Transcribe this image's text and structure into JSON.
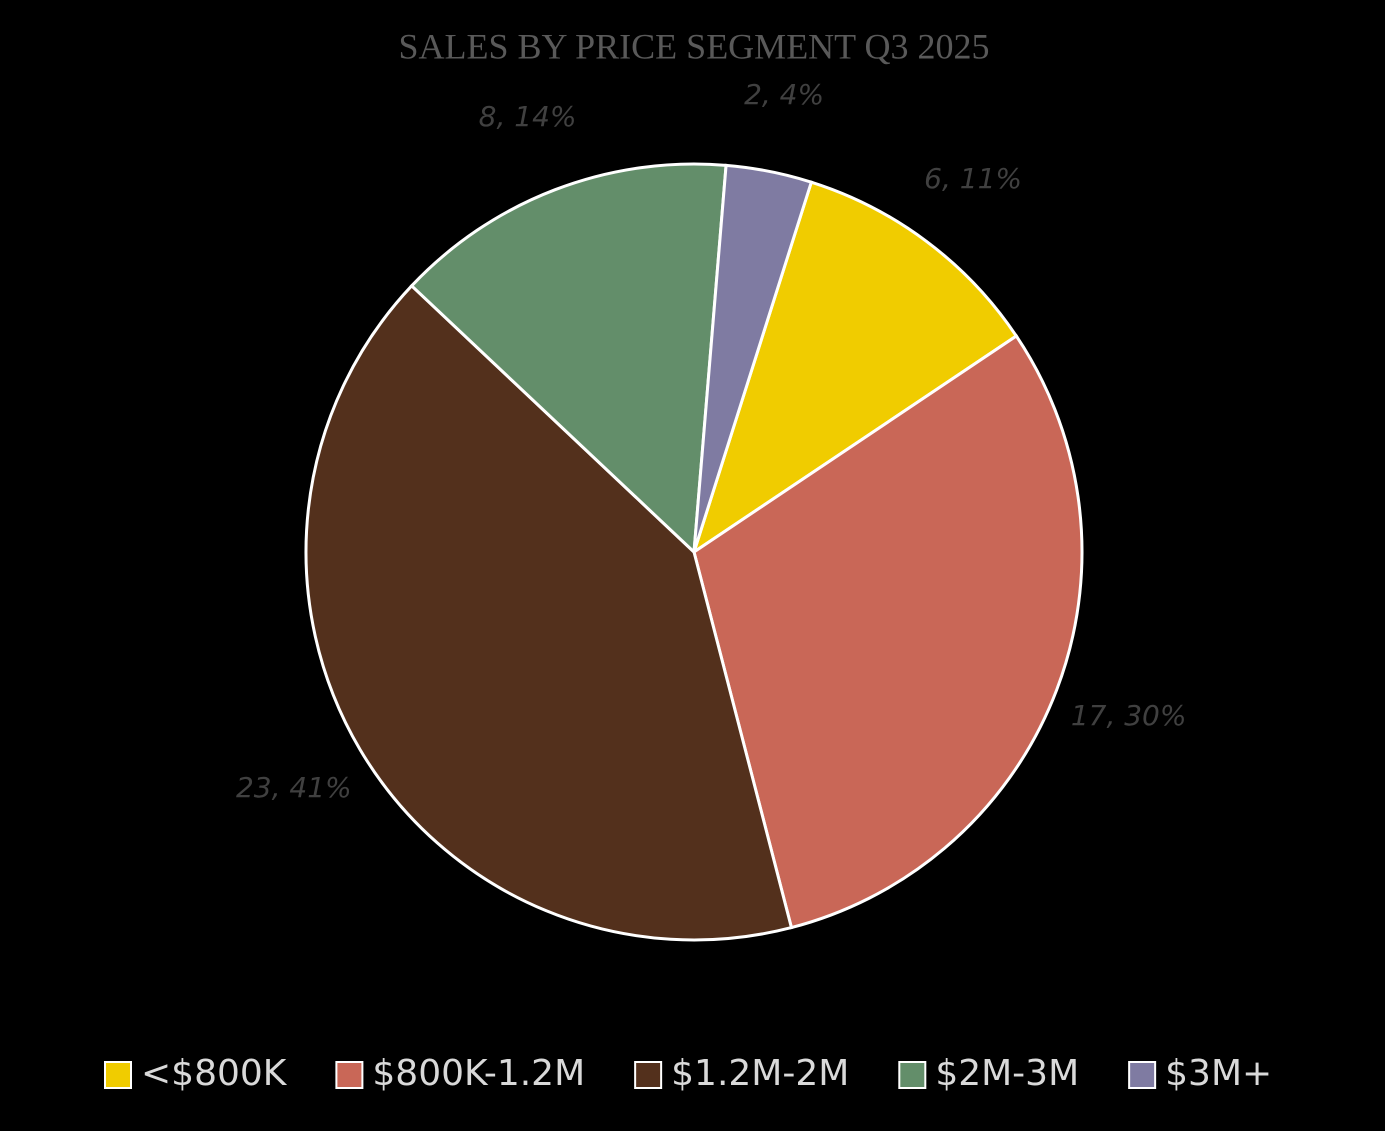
{
  "chart_data": {
    "type": "pie",
    "title": "SALES BY PRICE SEGMENT Q3 2025",
    "categories": [
      "<$800K",
      "$800K-1.2M",
      "$1.2M-2M",
      "$2M-3M",
      "$3M+"
    ],
    "values": [
      6,
      17,
      23,
      8,
      2
    ],
    "value_labels": [
      "6, 11%",
      "17, 30%",
      "23, 41%",
      "8, 14%",
      "2, 4%"
    ],
    "colors": [
      "#f0cc00",
      "#c96757",
      "#53301c",
      "#638e6a",
      "#7f7ba2"
    ],
    "legend": "bottom"
  }
}
